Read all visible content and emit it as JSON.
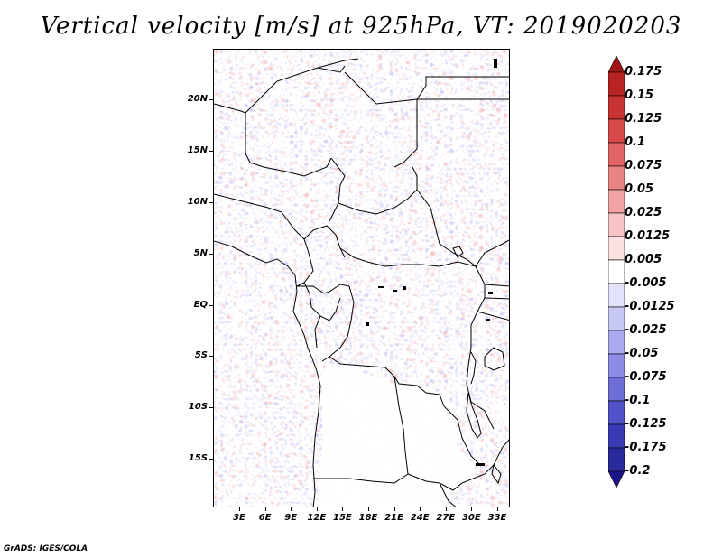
{
  "title": "Vertical velocity [m/s] at 925hPa, VT: 2019020203",
  "map": {
    "variable": "Vertical velocity",
    "units": "m/s",
    "level": "925hPa",
    "valid_time": "2019020203",
    "lat_labels": [
      "20N",
      "15N",
      "10N",
      "5N",
      "EQ",
      "5S",
      "10S",
      "15S"
    ],
    "lon_labels": [
      "3E",
      "6E",
      "9E",
      "12E",
      "15E",
      "18E",
      "21E",
      "24E",
      "27E",
      "30E",
      "33E"
    ],
    "colors": {
      "positive_strong": "#a51a1a",
      "positive_weak": "#f5d0cf",
      "negative_weak": "#d4d4f5",
      "negative_strong": "#221688",
      "border": "#000000"
    }
  },
  "colorbar": {
    "levels": [
      "0.175",
      "0.15",
      "0.125",
      "0.1",
      "0.075",
      "0.05",
      "0.025",
      "0.0125",
      "0.005",
      "-0.005",
      "-0.0125",
      "-0.025",
      "-0.05",
      "-0.075",
      "-0.1",
      "-0.125",
      "-0.175",
      "-0.2"
    ],
    "colors": [
      "#a01616",
      "#b82424",
      "#c83434",
      "#d84a4a",
      "#e06464",
      "#e88484",
      "#f0a4a4",
      "#f6c4c4",
      "#fbe2e2",
      "#ffffff",
      "#e2e2fb",
      "#c8c8f4",
      "#aaaaee",
      "#8c8ce4",
      "#6e6ed8",
      "#5252c8",
      "#3a3ab4",
      "#2a2a9e",
      "#1c1488"
    ]
  },
  "credit": "GrADS: IGES/COLA"
}
